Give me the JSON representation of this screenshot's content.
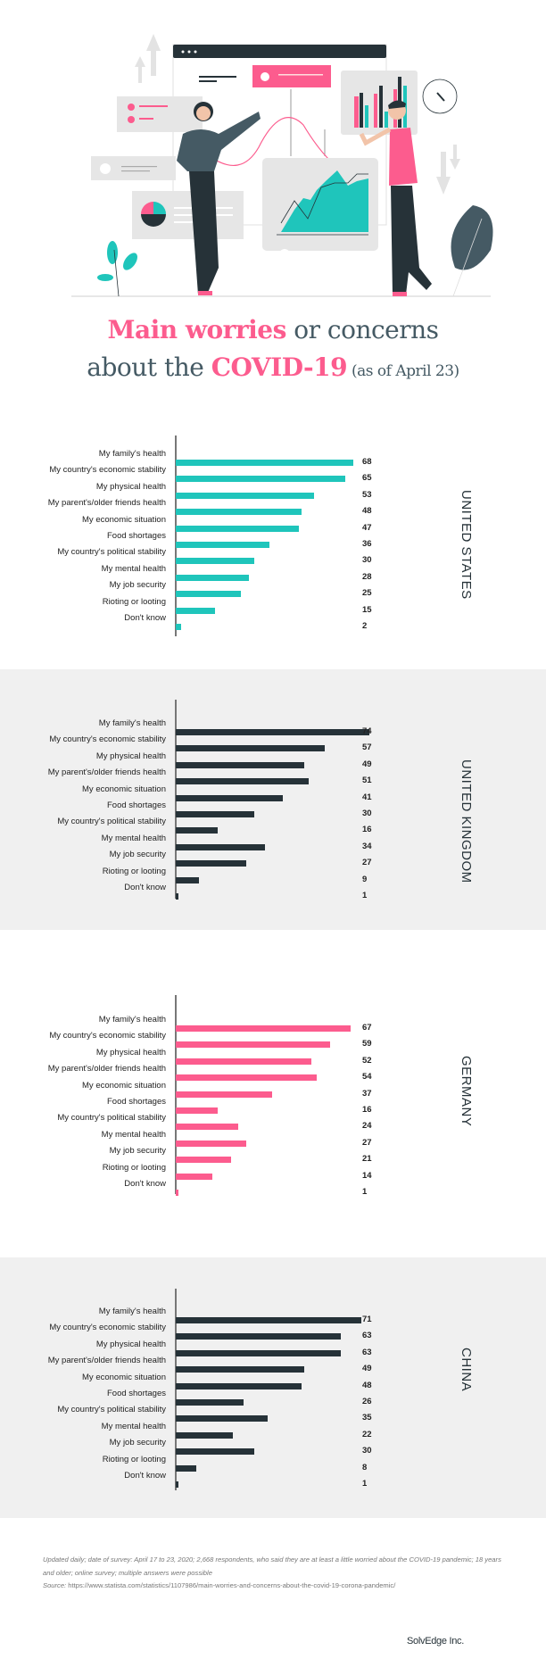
{
  "title": {
    "line1_highlight": "Main worries",
    "line1_rest": " or concerns",
    "line2_start": "about the ",
    "line2_highlight": "COVID-19",
    "line2_note": " (as of April 23)"
  },
  "colors": {
    "teal": "#1fc5bb",
    "dark": "#263238",
    "pink": "#fc5c8e",
    "panel_gray": "#f0f0f0"
  },
  "chart_data": [
    {
      "type": "bar",
      "orientation": "horizontal",
      "country": "UNITED STATES",
      "bar_color": "#1fc5bb",
      "background": "white",
      "categories": [
        "My family's health",
        "My country's economic stability",
        "My physical health",
        "My parent's/older friends health",
        "My economic situation",
        "Food shortages",
        "My country's political stability",
        "My mental health",
        "My job security",
        "Rioting or looting",
        "Don't know"
      ],
      "values": [
        68,
        65,
        53,
        48,
        47,
        36,
        30,
        28,
        25,
        15,
        2
      ]
    },
    {
      "type": "bar",
      "orientation": "horizontal",
      "country": "UNITED KINGDOM",
      "bar_color": "#263238",
      "background": "gray",
      "categories": [
        "My family's health",
        "My country's economic stability",
        "My physical health",
        "My parent's/older friends health",
        "My economic situation",
        "Food shortages",
        "My country's political stability",
        "My mental health",
        "My job security",
        "Rioting or looting",
        "Don't know"
      ],
      "values": [
        74,
        57,
        49,
        51,
        41,
        30,
        16,
        34,
        27,
        9,
        1
      ]
    },
    {
      "type": "bar",
      "orientation": "horizontal",
      "country": "GERMANY",
      "bar_color": "#fc5c8e",
      "background": "white",
      "categories": [
        "My family's health",
        "My country's economic stability",
        "My physical health",
        "My parent's/older friends health",
        "My economic situation",
        "Food shortages",
        "My country's political stability",
        "My mental health",
        "My job security",
        "Rioting or looting",
        "Don't know"
      ],
      "values": [
        67,
        59,
        52,
        54,
        37,
        16,
        24,
        27,
        21,
        14,
        1
      ]
    },
    {
      "type": "bar",
      "orientation": "horizontal",
      "country": "CHINA",
      "bar_color": "#263238",
      "background": "gray",
      "categories": [
        "My family's health",
        "My country's economic stability",
        "My physical health",
        "My parent's/older friends health",
        "My economic situation",
        "Food shortages",
        "My country's political stability",
        "My mental health",
        "My job security",
        "Rioting or looting",
        "Don't know"
      ],
      "values": [
        71,
        63,
        63,
        49,
        48,
        26,
        35,
        22,
        30,
        8,
        1
      ]
    }
  ],
  "footnote": {
    "line1": "Updated daily; date of survey: April 17 to 23, 2020; 2,668 respondents, who said they are at least a little worried about the COVID-19 pandemic; 18 years and older; online survey; multiple answers were possible",
    "source_label": "Source:",
    "source_url": " https://www.statista.com/statistics/1107986/main-worries-and-concerns-about-the-covid-19-corona-pandemic/"
  },
  "brand": "SolvEdge Inc."
}
